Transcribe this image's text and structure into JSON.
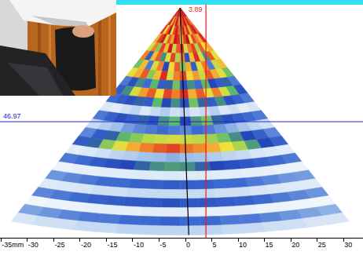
{
  "chart_data": {
    "type": "heatmap",
    "xlim": [
      -35.2,
      33.7
    ],
    "xticks": [
      {
        "value": -35,
        "label": "-35mm"
      },
      -30,
      -25,
      -20,
      -15,
      -10,
      -5,
      0,
      5,
      10,
      15,
      20,
      25,
      30
    ],
    "ylim": [
      94.85,
      -3.24
    ],
    "yticks": [],
    "tick_labels": "x",
    "grid": false,
    "apex": {
      "x": -1,
      "y": 0
    },
    "angles": [
      -20,
      -17.5,
      -15,
      -12.5,
      -10,
      -7.5,
      -5,
      -2.5,
      0,
      2.5,
      5,
      7.5,
      10,
      12.5,
      15,
      17.5,
      20
    ],
    "ranges": [
      0,
      3.75,
      7.5,
      11.25,
      15,
      18.75,
      22.5,
      26.25,
      30,
      33.75,
      37.5,
      41.25,
      45,
      48.75,
      52.5,
      56.25,
      60,
      63.75,
      67.5,
      71.25,
      75,
      78.75,
      82.5,
      86.25,
      90,
      93.75
    ],
    "color_range": [
      0,
      100
    ],
    "cells": [
      [
        95,
        92,
        98,
        90,
        96,
        100,
        94,
        97,
        99,
        93,
        96,
        91,
        98,
        95,
        92,
        97
      ],
      [
        88,
        96,
        70,
        92,
        85,
        98,
        90,
        82,
        95,
        88,
        92,
        99,
        86,
        94,
        90,
        85
      ],
      [
        92,
        75,
        88,
        98,
        72,
        90,
        95,
        88,
        80,
        97,
        85,
        92,
        78,
        90,
        96,
        88
      ],
      [
        80,
        90,
        95,
        70,
        88,
        82,
        96,
        92,
        75,
        90,
        98,
        72,
        90,
        85,
        80,
        92
      ],
      [
        70,
        85,
        62,
        90,
        78,
        95,
        68,
        88,
        92,
        70,
        85,
        90,
        65,
        88,
        75,
        80
      ],
      [
        85,
        45,
        78,
        88,
        55,
        72,
        90,
        65,
        85,
        48,
        78,
        92,
        70,
        55,
        88,
        72
      ],
      [
        60,
        78,
        40,
        70,
        85,
        50,
        75,
        88,
        60,
        80,
        45,
        72,
        85,
        40,
        68,
        78
      ],
      [
        72,
        80,
        88,
        62,
        78,
        92,
        70,
        85,
        90,
        75,
        82,
        68,
        88,
        80,
        72,
        60
      ],
      [
        40,
        48,
        55,
        42,
        58,
        45,
        52,
        60,
        48,
        55,
        42,
        58,
        50,
        45,
        52,
        40
      ],
      [
        45,
        55,
        70,
        82,
        88,
        75,
        90,
        85,
        92,
        80,
        88,
        72,
        85,
        70,
        58,
        48
      ],
      [
        42,
        45,
        48,
        52,
        45,
        58,
        50,
        55,
        48,
        60,
        52,
        45,
        55,
        48,
        44,
        40
      ],
      [
        15,
        12,
        18,
        22,
        14,
        20,
        25,
        18,
        22,
        16,
        20,
        24,
        15,
        18,
        12,
        16
      ],
      [
        40,
        44,
        48,
        45,
        52,
        48,
        55,
        58,
        50,
        56,
        60,
        52,
        48,
        45,
        42,
        40
      ],
      [
        20,
        25,
        30,
        35,
        38,
        40,
        42,
        40,
        38,
        42,
        40,
        36,
        32,
        28,
        22,
        18
      ],
      [
        38,
        45,
        52,
        58,
        62,
        66,
        68,
        70,
        68,
        66,
        64,
        60,
        55,
        50,
        44,
        38
      ],
      [
        45,
        52,
        62,
        72,
        80,
        85,
        88,
        90,
        86,
        84,
        80,
        74,
        65,
        56,
        50,
        44
      ],
      [
        12,
        15,
        18,
        22,
        25,
        28,
        30,
        32,
        30,
        28,
        25,
        22,
        20,
        16,
        14,
        12
      ],
      [
        40,
        42,
        45,
        48,
        50,
        52,
        55,
        56,
        55,
        52,
        50,
        48,
        46,
        44,
        42,
        40
      ],
      [
        8,
        10,
        10,
        12,
        12,
        14,
        14,
        15,
        14,
        14,
        12,
        12,
        10,
        10,
        8,
        8
      ],
      [
        36,
        38,
        40,
        42,
        42,
        44,
        44,
        45,
        44,
        44,
        42,
        42,
        40,
        38,
        36,
        35
      ],
      [
        14,
        15,
        16,
        18,
        18,
        20,
        20,
        20,
        20,
        20,
        18,
        18,
        16,
        15,
        14,
        14
      ],
      [
        38,
        40,
        42,
        44,
        45,
        46,
        46,
        48,
        46,
        46,
        45,
        44,
        42,
        40,
        38,
        36
      ],
      [
        6,
        8,
        8,
        10,
        10,
        10,
        12,
        12,
        12,
        10,
        10,
        10,
        8,
        8,
        6,
        6
      ],
      [
        34,
        36,
        38,
        40,
        40,
        42,
        42,
        44,
        42,
        42,
        40,
        40,
        38,
        36,
        34,
        32
      ],
      [
        16,
        18,
        18,
        20,
        20,
        22,
        22,
        22,
        22,
        22,
        20,
        20,
        18,
        18,
        16,
        16
      ]
    ],
    "beam": {
      "angle": 1,
      "color": "#000000"
    },
    "cursors": [
      {
        "axis": "x",
        "value": 3.89,
        "color": "#ff1010"
      },
      {
        "axis": "y",
        "value": 46.97,
        "color": "#2828c8"
      }
    ]
  }
}
